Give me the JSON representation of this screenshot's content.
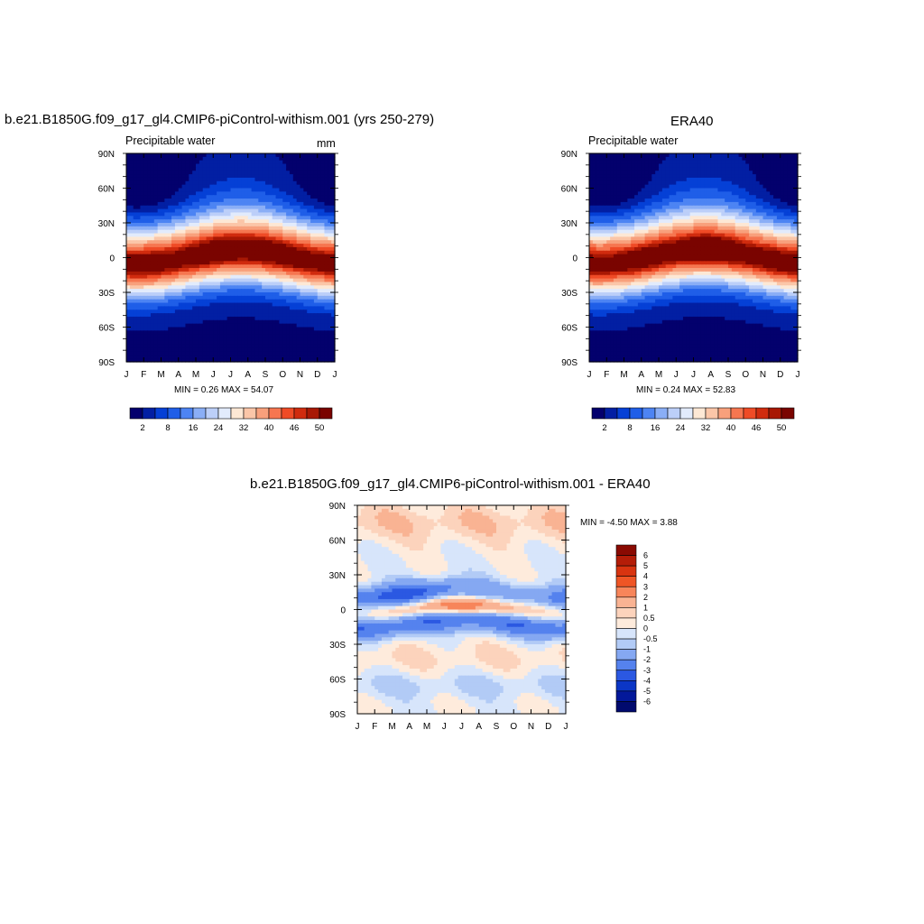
{
  "chart_data": [
    {
      "type": "heatmap",
      "title": "b.e21.B1850G.f09_g17_gl4.CMIP6-piControl-withism.001 (yrs 250-279)",
      "subtitle_left": "Precipitable water",
      "subtitle_right": "mm",
      "x_tick_labels": [
        "J",
        "F",
        "M",
        "A",
        "M",
        "J",
        "J",
        "A",
        "S",
        "O",
        "N",
        "D",
        "J"
      ],
      "y_tick_labels": [
        "90N",
        "60N",
        "30N",
        "0",
        "30S",
        "60S",
        "90S"
      ],
      "stats": "MIN =   0.26 MAX =  54.07",
      "min": 0.26,
      "max": 54.07,
      "colorbar_labels": [
        "2",
        "8",
        "16",
        "24",
        "32",
        "40",
        "46",
        "50"
      ],
      "colorbar_colors": [
        "#03006d",
        "#021fa3",
        "#0540d6",
        "#1f5ee8",
        "#4d84f3",
        "#8aaef6",
        "#bccff9",
        "#e2ebfc",
        "#fde8d5",
        "#fbc6a8",
        "#f8a07c",
        "#f67650",
        "#ef4b26",
        "#d02b0e",
        "#a81804",
        "#7a0400"
      ]
    },
    {
      "type": "heatmap",
      "title": "ERA40",
      "subtitle_left": "Precipitable water",
      "x_tick_labels": [
        "J",
        "F",
        "M",
        "A",
        "M",
        "J",
        "J",
        "A",
        "S",
        "O",
        "N",
        "D",
        "J"
      ],
      "y_tick_labels": [
        "90N",
        "60N",
        "30N",
        "0",
        "30S",
        "60S",
        "90S"
      ],
      "stats": "MIN =   0.24 MAX =  52.83",
      "min": 0.24,
      "max": 52.83,
      "colorbar_labels": [
        "2",
        "8",
        "16",
        "24",
        "32",
        "40",
        "46",
        "50"
      ],
      "colorbar_colors": [
        "#03006d",
        "#021fa3",
        "#0540d6",
        "#1f5ee8",
        "#4d84f3",
        "#8aaef6",
        "#bccff9",
        "#e2ebfc",
        "#fde8d5",
        "#fbc6a8",
        "#f8a07c",
        "#f67650",
        "#ef4b26",
        "#d02b0e",
        "#a81804",
        "#7a0400"
      ]
    },
    {
      "type": "heatmap",
      "title": "b.e21.B1850G.f09_g17_gl4.CMIP6-piControl-withism.001 - ERA40",
      "x_tick_labels": [
        "J",
        "F",
        "M",
        "A",
        "M",
        "J",
        "J",
        "A",
        "S",
        "O",
        "N",
        "D",
        "J"
      ],
      "y_tick_labels": [
        "90N",
        "60N",
        "30N",
        "0",
        "30S",
        "60S",
        "90S"
      ],
      "stats": "MIN =  -4.50 MAX =   3.88",
      "min": -4.5,
      "max": 3.88,
      "colorbar_labels": [
        "6",
        "5",
        "4",
        "3",
        "2",
        "1",
        "0.5",
        "0",
        "-0.5",
        "-1",
        "-2",
        "-3",
        "-4",
        "-5",
        "-6"
      ],
      "colorbar_colors": [
        "#8a0a02",
        "#b41d08",
        "#d83410",
        "#ef5525",
        "#f7855a",
        "#f9b393",
        "#fcd3bc",
        "#feebdc",
        "#d7e5fb",
        "#b2cbf6",
        "#85a8f2",
        "#5582ee",
        "#2b58e2",
        "#0b36c6",
        "#03189a",
        "#010a6e"
      ]
    }
  ]
}
